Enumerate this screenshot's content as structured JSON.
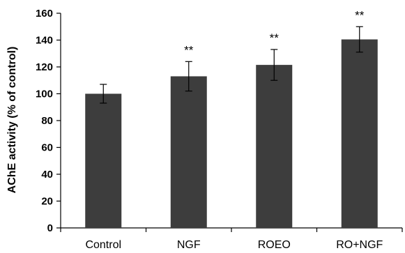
{
  "chart_data": {
    "type": "bar",
    "title": "",
    "xlabel": "",
    "ylabel": "AChE activity (% of control)",
    "categories": [
      "Control",
      "NGF",
      "ROEO",
      "RO+NGF"
    ],
    "values": [
      100,
      113,
      121.5,
      140.5
    ],
    "errors": [
      7,
      11,
      11.5,
      9.5
    ],
    "annotations": [
      "",
      "**",
      "**",
      "**"
    ],
    "ylim": [
      0,
      160
    ],
    "yticks": [
      0,
      20,
      40,
      60,
      80,
      100,
      120,
      140,
      160
    ],
    "grid": false,
    "bar_color": "#3d3d3d"
  }
}
